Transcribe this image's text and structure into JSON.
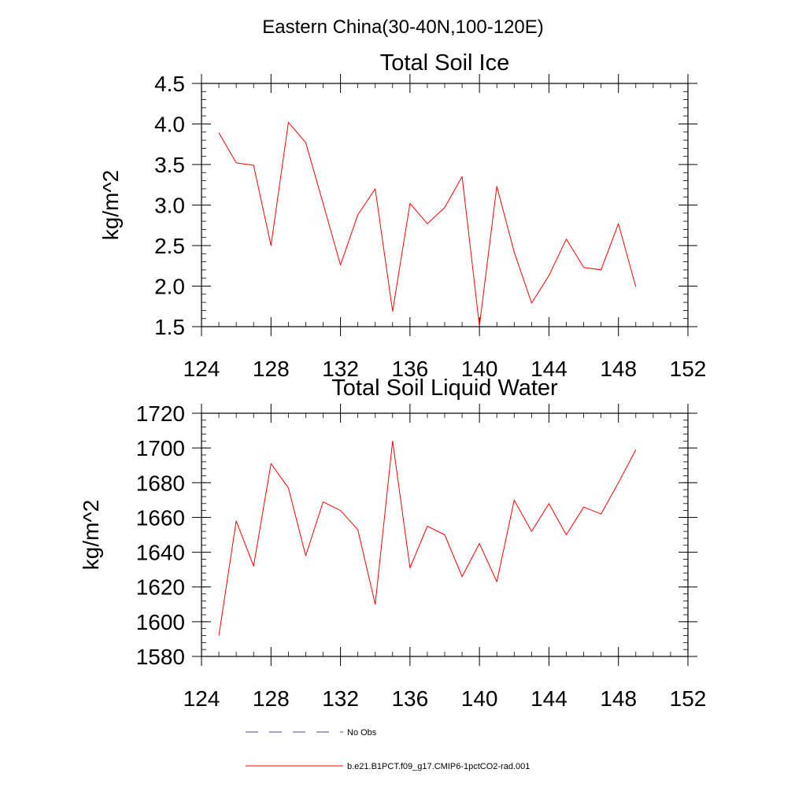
{
  "figure": {
    "suptitle": "Eastern China(30-40N,100-120E)"
  },
  "chart_data": [
    {
      "type": "line",
      "title": "Total Soil Ice",
      "xlabel": "",
      "ylabel": "kg/m^2",
      "xlim": [
        124,
        152
      ],
      "ylim": [
        1.5,
        4.5
      ],
      "xticks": [
        124,
        128,
        132,
        136,
        140,
        144,
        148,
        152
      ],
      "yticks": [
        1.5,
        2.0,
        2.5,
        3.0,
        3.5,
        4.0,
        4.5
      ],
      "yticklabels": [
        "1.5",
        "2.0",
        "2.5",
        "3.0",
        "3.5",
        "4.0",
        "4.5"
      ],
      "grid": false,
      "series": [
        {
          "name": "b.e21.B1PCT.f09_g17.CMIP6-1pctCO2-rad.001",
          "color": "#ff0000",
          "x": [
            125,
            126,
            127,
            128,
            129,
            130,
            131,
            132,
            133,
            134,
            135,
            136,
            137,
            138,
            139,
            140,
            141,
            142,
            143,
            144,
            145,
            146,
            147,
            148,
            149
          ],
          "values": [
            3.89,
            3.52,
            3.49,
            2.5,
            4.02,
            3.77,
            3.02,
            2.26,
            2.88,
            3.2,
            1.69,
            3.02,
            2.77,
            2.97,
            3.35,
            1.51,
            3.23,
            2.42,
            1.79,
            2.13,
            2.58,
            2.23,
            2.2,
            2.77,
            1.99
          ]
        }
      ]
    },
    {
      "type": "line",
      "title": "Total Soil Liquid Water",
      "xlabel": "",
      "ylabel": "kg/m^2",
      "xlim": [
        124,
        152
      ],
      "ylim": [
        1580,
        1720
      ],
      "xticks": [
        124,
        128,
        132,
        136,
        140,
        144,
        148,
        152
      ],
      "yticks": [
        1580,
        1600,
        1620,
        1640,
        1660,
        1680,
        1700,
        1720
      ],
      "yticklabels": [
        "1580",
        "1600",
        "1620",
        "1640",
        "1660",
        "1680",
        "1700",
        "1720"
      ],
      "grid": false,
      "series": [
        {
          "name": "b.e21.B1PCT.f09_g17.CMIP6-1pctCO2-rad.001",
          "color": "#ff0000",
          "x": [
            125,
            126,
            127,
            128,
            129,
            130,
            131,
            132,
            133,
            134,
            135,
            136,
            137,
            138,
            139,
            140,
            141,
            142,
            143,
            144,
            145,
            146,
            147,
            148,
            149
          ],
          "values": [
            1592,
            1658,
            1632,
            1691,
            1677,
            1638,
            1669,
            1664,
            1653,
            1610,
            1704,
            1631,
            1655,
            1650,
            1626,
            1645,
            1623,
            1670,
            1652,
            1668,
            1650,
            1666,
            1662,
            1680,
            1699
          ]
        }
      ]
    }
  ],
  "legend": {
    "placement": "bottom-center",
    "items": [
      {
        "label": "No Obs",
        "color": "#4a4a8a",
        "style": "dashed"
      },
      {
        "label": "b.e21.B1PCT.f09_g17.CMIP6-1pctCO2-rad.001",
        "color": "#ff0000",
        "style": "solid"
      }
    ]
  }
}
